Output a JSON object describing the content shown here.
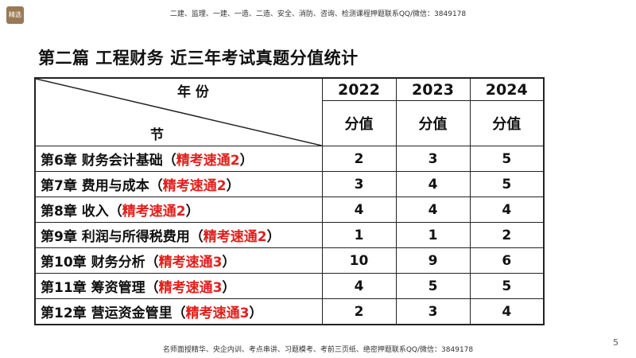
{
  "header": {
    "logo_text": "精选",
    "note": "二建、监理、一建、一造、二造、安全、消防、咨询、检测课程押题联系QQ/微信：3849178"
  },
  "title": "第二篇 工程财务 近三年考试真题分值统计",
  "table": {
    "year_header": "年  份",
    "section_header": "节",
    "years": [
      "2022",
      "2023",
      "2024"
    ],
    "sub_label": "分值",
    "rows": [
      {
        "chapter": "第6章  财务会计基础（",
        "tag": "精考速通2",
        "close": "）",
        "values": [
          "2",
          "3",
          "5"
        ]
      },
      {
        "chapter": "第7章  费用与成本（",
        "tag": "精考速通2",
        "close": "）",
        "values": [
          "3",
          "4",
          "5"
        ]
      },
      {
        "chapter": "第8章   收入（",
        "tag": "精考速通2",
        "close": "）",
        "values": [
          "4",
          "4",
          "4"
        ]
      },
      {
        "chapter": "第9章   利润与所得税费用（",
        "tag": "精考速通2",
        "close": "）",
        "values": [
          "1",
          "1",
          "2"
        ]
      },
      {
        "chapter": "第10章   财务分析（",
        "tag": "精考速通3",
        "close": "）",
        "values": [
          "10",
          "9",
          "6"
        ]
      },
      {
        "chapter": "第11章   筹资管理（",
        "tag": "精考速通3",
        "close": "）",
        "values": [
          "4",
          "5",
          "5"
        ]
      },
      {
        "chapter": "第12章   营运资金管里（",
        "tag": "精考速通3",
        "close": "）",
        "values": [
          "2",
          "3",
          "4"
        ]
      }
    ]
  },
  "footer": {
    "note": "名师面授精华、央企内训、考点串讲、习题模考、考前三页纸、绝密押题联系QQ/微信：3849178",
    "page": "5"
  },
  "colors": {
    "tag_red": "#e0201c",
    "border": "#222222",
    "logo_bg": "#9a7a55"
  }
}
